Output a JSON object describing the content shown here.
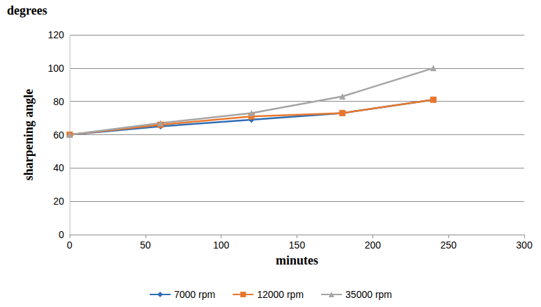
{
  "chart_data": {
    "type": "line",
    "xlabel": "minutes",
    "ylabel": "sharpening angle",
    "annotations": [
      "degrees"
    ],
    "x": [
      0,
      60,
      120,
      180,
      240
    ],
    "series": [
      {
        "name": "7000 rpm",
        "color": "#2e6db4",
        "marker": "diamond",
        "line_style": "solid",
        "values": [
          60,
          65,
          69,
          73,
          81
        ]
      },
      {
        "name": "12000 rpm",
        "color": "#e8772e",
        "marker": "square",
        "line_style": "solid",
        "values": [
          60,
          66,
          71,
          73,
          81
        ]
      },
      {
        "name": "35000 rpm",
        "color": "#a5a5a5",
        "marker": "triangle",
        "line_style": "solid",
        "values": [
          60,
          67,
          73,
          83,
          100
        ]
      }
    ],
    "xlim": [
      0,
      300
    ],
    "xticks": [
      0,
      50,
      100,
      150,
      200,
      250,
      300
    ],
    "ylim": [
      0,
      120
    ],
    "yticks": [
      0,
      20,
      40,
      60,
      80,
      100,
      120
    ],
    "grid": true,
    "legend": "bottom"
  }
}
